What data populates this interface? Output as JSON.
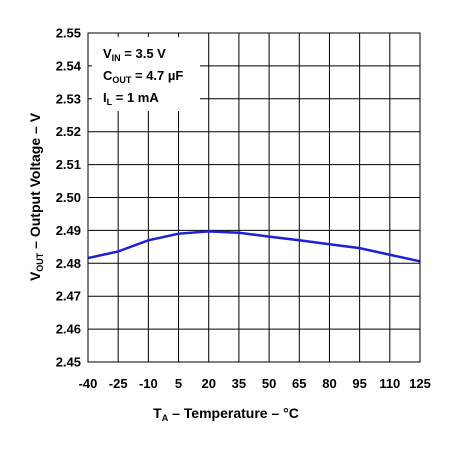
{
  "chart_data": {
    "type": "line",
    "xlabel": {
      "main": "T",
      "sub": "A",
      "rest": " – Temperature – °C"
    },
    "ylabel": {
      "main": "V",
      "sub": "OUT",
      "rest": " – Output Voltage – V"
    },
    "xlim": [
      -40,
      125
    ],
    "ylim": [
      2.45,
      2.55
    ],
    "x_ticks": [
      "-40",
      "-25",
      "-10",
      "5",
      "20",
      "35",
      "50",
      "65",
      "80",
      "95",
      "110",
      "125"
    ],
    "y_ticks": [
      "2.45",
      "2.46",
      "2.47",
      "2.48",
      "2.49",
      "2.50",
      "2.51",
      "2.52",
      "2.53",
      "2.54",
      "2.55"
    ],
    "grid": true,
    "line_color": "#1f1fd6",
    "annotation": [
      {
        "main": "V",
        "sub": "IN",
        "rest": " =  3.5 V"
      },
      {
        "main": "C",
        "sub": "OUT",
        "rest": " = 4.7 µF"
      },
      {
        "main": "I",
        "sub": "L",
        "rest": " = 1 mA"
      }
    ],
    "series": [
      {
        "x": [
          -40,
          -25,
          -10,
          5,
          20,
          35,
          50,
          65,
          80,
          95,
          110,
          125
        ],
        "y": [
          2.4816,
          2.4836,
          2.487,
          2.489,
          2.4897,
          2.4893,
          2.4881,
          2.487,
          2.4858,
          2.4846,
          2.4826,
          2.4806
        ]
      }
    ]
  }
}
